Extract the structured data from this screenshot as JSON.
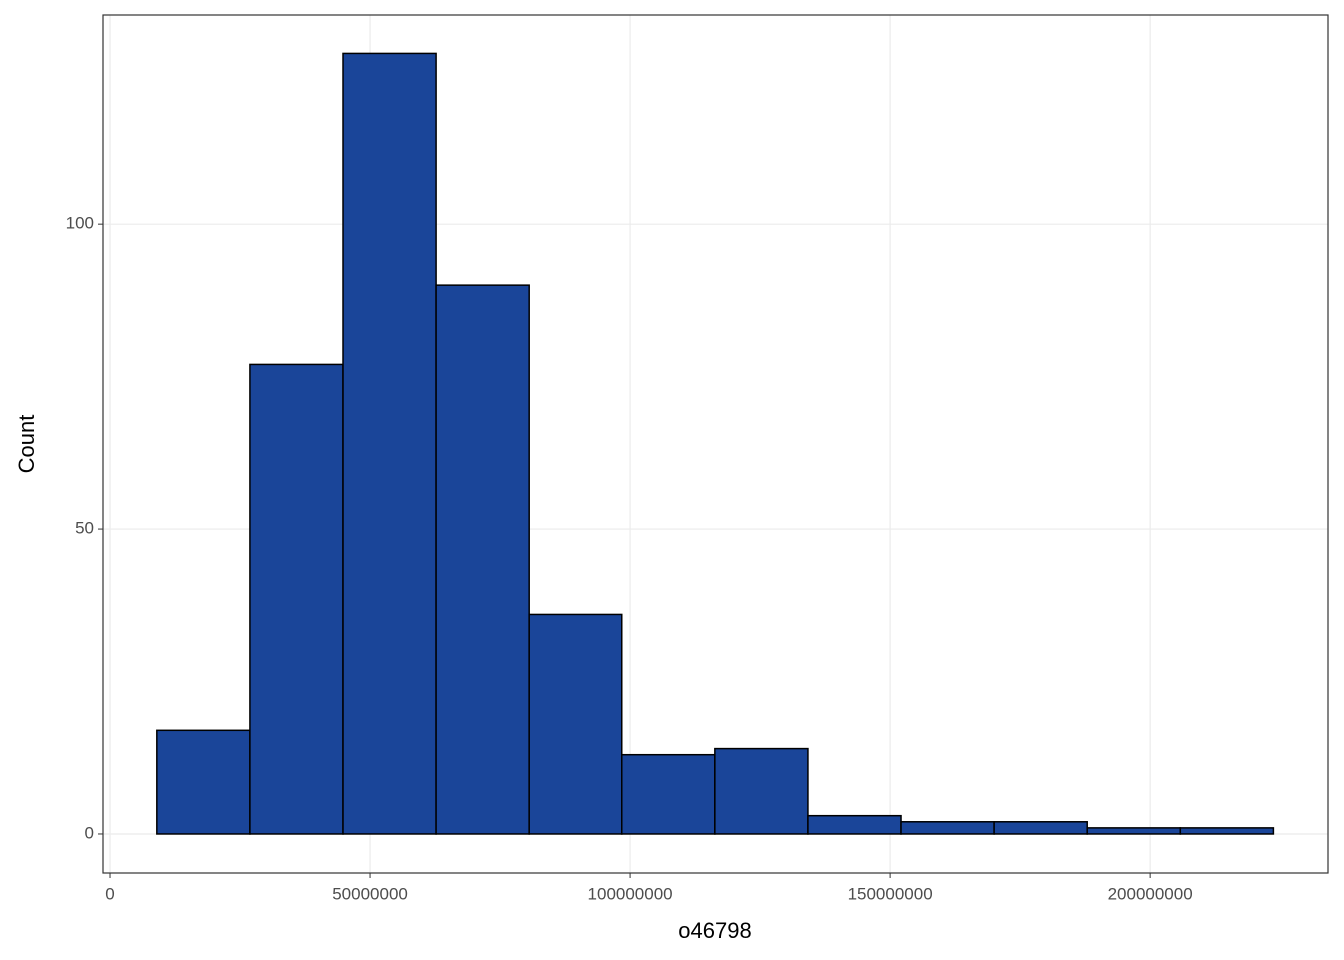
{
  "chart_data": {
    "type": "histogram",
    "x_label": "o46798",
    "y_label": "Count",
    "bins": [
      9000000,
      26900000,
      44800000,
      62700000,
      80600000,
      98400000,
      116300000,
      134200000,
      152100000,
      170000000,
      187900000,
      205800000,
      223700000
    ],
    "values": [
      17,
      77,
      128,
      90,
      36,
      13,
      14,
      3,
      2,
      2,
      1,
      1
    ],
    "color": "#1a4599",
    "edge_color": "#000000",
    "xlim": [
      -1350000,
      234200000
    ],
    "xticks": [
      0,
      50000000,
      100000000,
      150000000,
      200000000
    ],
    "ylim": [
      -6.4,
      134.3
    ],
    "yticks": [
      0,
      50,
      100
    ],
    "grid": true
  }
}
